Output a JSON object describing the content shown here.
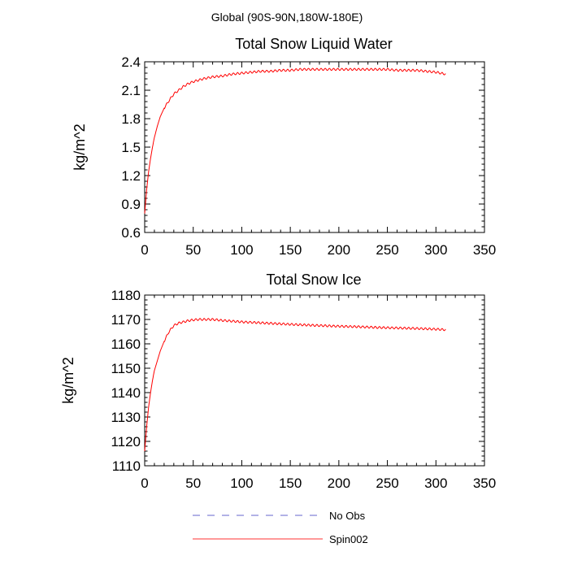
{
  "figure_title": "Global (90S-90N,180W-180E)",
  "chart_data": [
    {
      "type": "line",
      "title": "Total Snow Liquid Water",
      "xlabel": "",
      "ylabel": "kg/m^2",
      "xlim": [
        0,
        350
      ],
      "ylim": [
        0.6,
        2.4
      ],
      "xticks": [
        0,
        50,
        100,
        150,
        200,
        250,
        300,
        350
      ],
      "xtick_labels": [
        "0",
        "50",
        "100",
        "150",
        "200",
        "250",
        "300",
        "350"
      ],
      "yticks": [
        0.6,
        0.9,
        1.2,
        1.5,
        1.8,
        2.1,
        2.4
      ],
      "ytick_labels": [
        "0.6",
        "0.9",
        "1.2",
        "1.5",
        "1.8",
        "2.1",
        "2.4"
      ],
      "series": [
        {
          "name": "Spin002",
          "color": "#ff0000",
          "x": [
            0,
            2,
            4,
            6,
            8,
            10,
            13,
            16,
            20,
            25,
            30,
            35,
            40,
            45,
            50,
            60,
            70,
            80,
            90,
            100,
            110,
            120,
            130,
            140,
            150,
            160,
            170,
            180,
            190,
            200,
            210,
            220,
            230,
            240,
            250,
            260,
            270,
            280,
            290,
            300,
            305,
            310
          ],
          "values": [
            0.8,
            1.05,
            1.24,
            1.38,
            1.5,
            1.6,
            1.72,
            1.82,
            1.91,
            1.99,
            2.06,
            2.1,
            2.14,
            2.17,
            2.19,
            2.22,
            2.24,
            2.25,
            2.27,
            2.28,
            2.29,
            2.3,
            2.3,
            2.31,
            2.31,
            2.32,
            2.32,
            2.32,
            2.32,
            2.32,
            2.32,
            2.32,
            2.32,
            2.32,
            2.32,
            2.31,
            2.31,
            2.31,
            2.3,
            2.29,
            2.28,
            2.27
          ]
        }
      ]
    },
    {
      "type": "line",
      "title": "Total Snow Ice",
      "xlabel": "",
      "ylabel": "kg/m^2",
      "xlim": [
        0,
        350
      ],
      "ylim": [
        1110,
        1180
      ],
      "xticks": [
        0,
        50,
        100,
        150,
        200,
        250,
        300,
        350
      ],
      "xtick_labels": [
        "0",
        "50",
        "100",
        "150",
        "200",
        "250",
        "300",
        "350"
      ],
      "yticks": [
        1110,
        1120,
        1130,
        1140,
        1150,
        1160,
        1170,
        1180
      ],
      "ytick_labels": [
        "1110",
        "1120",
        "1130",
        "1140",
        "1150",
        "1160",
        "1170",
        "1180"
      ],
      "series": [
        {
          "name": "Spin002",
          "color": "#ff0000",
          "x": [
            0,
            2,
            4,
            6,
            8,
            10,
            13,
            16,
            20,
            25,
            30,
            35,
            40,
            45,
            50,
            55,
            60,
            70,
            80,
            90,
            100,
            120,
            140,
            160,
            180,
            200,
            220,
            240,
            260,
            280,
            300,
            310
          ],
          "values": [
            1116,
            1126,
            1134,
            1140,
            1145,
            1149,
            1153,
            1157,
            1161,
            1165,
            1167.5,
            1168.5,
            1169,
            1169.5,
            1169.8,
            1170,
            1170,
            1170,
            1169.6,
            1169.3,
            1169,
            1168.6,
            1168.2,
            1167.8,
            1167.5,
            1167.2,
            1167,
            1166.7,
            1166.5,
            1166.3,
            1166,
            1165.8
          ]
        }
      ]
    }
  ],
  "legend": [
    {
      "label": "No Obs",
      "color": "#6666cc",
      "style": "dashed"
    },
    {
      "label": "Spin002",
      "color": "#ff3333",
      "style": "solid"
    }
  ]
}
